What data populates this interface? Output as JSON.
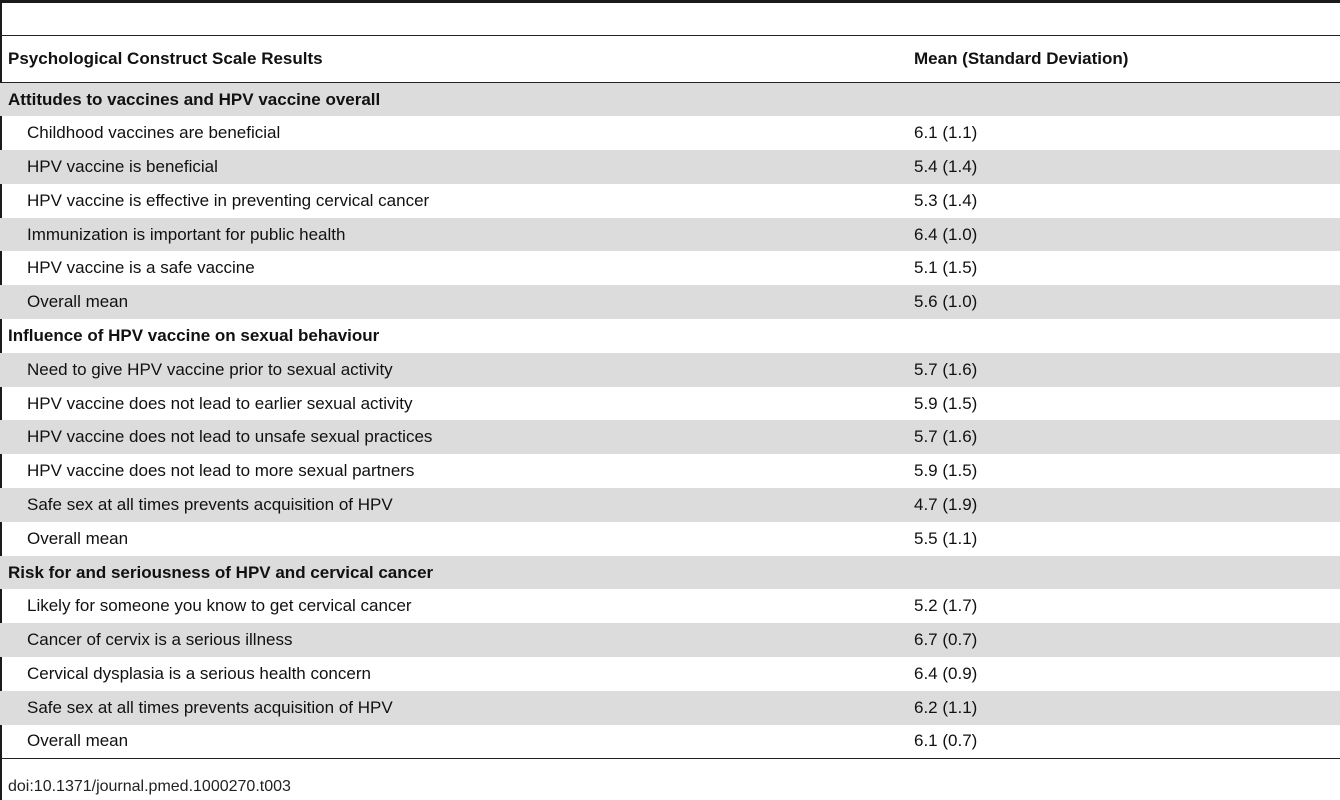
{
  "table": {
    "headers": [
      "Psychological Construct Scale Results",
      "Mean (Standard Deviation)"
    ],
    "rows": [
      {
        "type": "section",
        "label": "Attitudes to vaccines and HPV vaccine overall",
        "value": ""
      },
      {
        "type": "item",
        "label": "Childhood vaccines are beneficial",
        "value": "6.1 (1.1)"
      },
      {
        "type": "item",
        "label": "HPV vaccine is beneficial",
        "value": "5.4 (1.4)"
      },
      {
        "type": "item",
        "label": "HPV vaccine is effective in preventing cervical cancer",
        "value": "5.3 (1.4)"
      },
      {
        "type": "item",
        "label": "Immunization is important for public health",
        "value": "6.4 (1.0)"
      },
      {
        "type": "item",
        "label": "HPV vaccine is a safe vaccine",
        "value": "5.1 (1.5)"
      },
      {
        "type": "item",
        "label": "Overall mean",
        "value": "5.6 (1.0)"
      },
      {
        "type": "section",
        "label": "Influence of HPV vaccine on sexual behaviour",
        "value": ""
      },
      {
        "type": "item",
        "label": "Need to give HPV vaccine prior to sexual activity",
        "value": "5.7 (1.6)"
      },
      {
        "type": "item",
        "label": "HPV vaccine does not lead to earlier sexual activity",
        "value": "5.9 (1.5)"
      },
      {
        "type": "item",
        "label": "HPV vaccine does not lead to unsafe sexual practices",
        "value": "5.7 (1.6)"
      },
      {
        "type": "item",
        "label": "HPV vaccine does not lead to more sexual partners",
        "value": "5.9 (1.5)"
      },
      {
        "type": "item",
        "label": "Safe sex at all times prevents acquisition of HPV",
        "value": "4.7 (1.9)"
      },
      {
        "type": "item",
        "label": "Overall mean",
        "value": "5.5 (1.1)"
      },
      {
        "type": "section",
        "label": "Risk for and seriousness of HPV and cervical cancer",
        "value": ""
      },
      {
        "type": "item",
        "label": "Likely for someone you know to get cervical cancer",
        "value": "5.2 (1.7)"
      },
      {
        "type": "item",
        "label": "Cancer of cervix is a serious illness",
        "value": "6.7 (0.7)"
      },
      {
        "type": "item",
        "label": "Cervical dysplasia is a serious health concern",
        "value": "6.4 (0.9)"
      },
      {
        "type": "item",
        "label": "Safe sex at all times prevents acquisition of HPV",
        "value": "6.2 (1.1)"
      },
      {
        "type": "item",
        "label": "Overall mean",
        "value": "6.1 (0.7)"
      }
    ]
  },
  "footer": {
    "doi": "doi:10.1371/journal.pmed.1000270.t003"
  },
  "colors": {
    "shade": "#dcdcdc",
    "rule": "#222222"
  }
}
